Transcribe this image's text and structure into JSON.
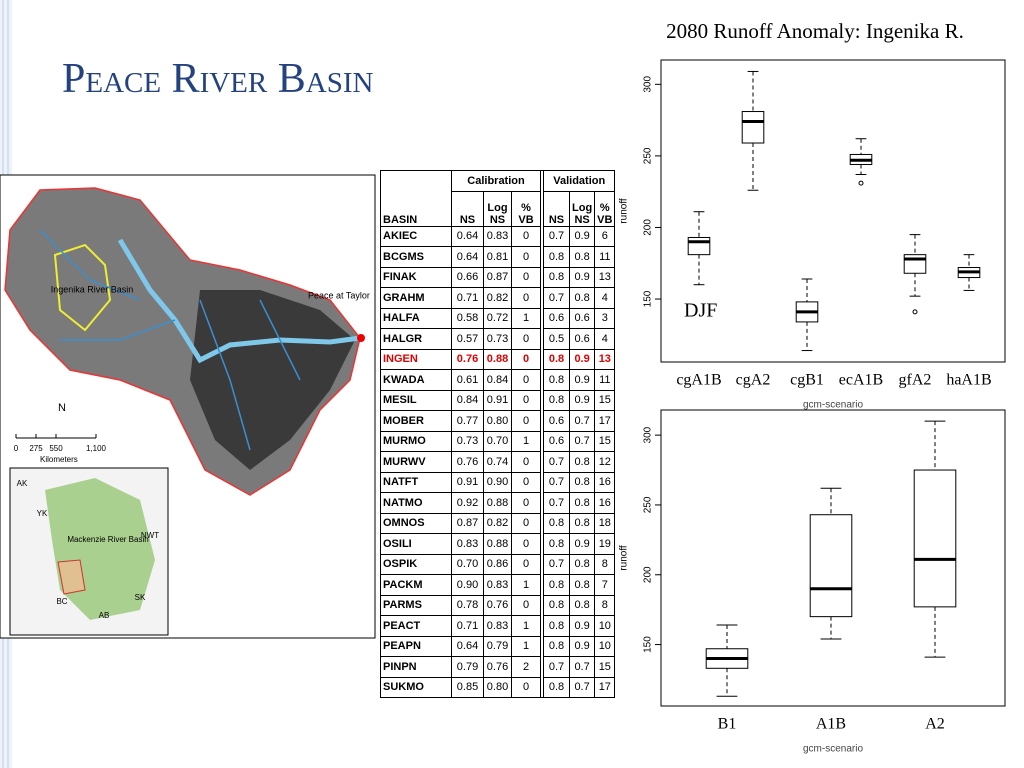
{
  "slide": {
    "title": "Peace River Basin"
  },
  "map": {
    "basin_label": "Ingenika River Basin",
    "outlet_label": "Peace at Taylor",
    "north": "N",
    "scale_ticks": [
      "0",
      "275",
      "550",
      "1,100"
    ],
    "scale_unit": "Kilometers",
    "inset_labels": [
      "AK",
      "YK",
      "NWT",
      "Mackenzie River Basin",
      "BC",
      "AB",
      "SK"
    ]
  },
  "table": {
    "group_headers": [
      "Calibration",
      "Validation"
    ],
    "columns": [
      "BASIN",
      "NS",
      "Log NS",
      "% VB",
      "NS",
      "Log NS",
      "% VB"
    ],
    "highlight_row": 6,
    "highlight_color": "#e00000",
    "rows": [
      [
        "AKIEC",
        "0.64",
        "0.83",
        "0",
        "0.7",
        "0.9",
        "6"
      ],
      [
        "BCGMS",
        "0.64",
        "0.81",
        "0",
        "0.8",
        "0.8",
        "11"
      ],
      [
        "FINAK",
        "0.66",
        "0.87",
        "0",
        "0.8",
        "0.9",
        "13"
      ],
      [
        "GRAHM",
        "0.71",
        "0.82",
        "0",
        "0.7",
        "0.8",
        "4"
      ],
      [
        "HALFA",
        "0.58",
        "0.72",
        "1",
        "0.6",
        "0.6",
        "3"
      ],
      [
        "HALGR",
        "0.57",
        "0.73",
        "0",
        "0.5",
        "0.6",
        "4"
      ],
      [
        "INGEN",
        "0.76",
        "0.88",
        "0",
        "0.8",
        "0.9",
        "13"
      ],
      [
        "KWADA",
        "0.61",
        "0.84",
        "0",
        "0.8",
        "0.9",
        "11"
      ],
      [
        "MESIL",
        "0.84",
        "0.91",
        "0",
        "0.8",
        "0.9",
        "15"
      ],
      [
        "MOBER",
        "0.77",
        "0.80",
        "0",
        "0.6",
        "0.7",
        "17"
      ],
      [
        "MURMO",
        "0.73",
        "0.70",
        "1",
        "0.6",
        "0.7",
        "15"
      ],
      [
        "MURWV",
        "0.76",
        "0.74",
        "0",
        "0.7",
        "0.8",
        "12"
      ],
      [
        "NATFT",
        "0.91",
        "0.90",
        "0",
        "0.7",
        "0.8",
        "16"
      ],
      [
        "NATMO",
        "0.92",
        "0.88",
        "0",
        "0.7",
        "0.8",
        "16"
      ],
      [
        "OMNOS",
        "0.87",
        "0.82",
        "0",
        "0.8",
        "0.8",
        "18"
      ],
      [
        "OSILI",
        "0.83",
        "0.88",
        "0",
        "0.8",
        "0.9",
        "19"
      ],
      [
        "OSPIK",
        "0.70",
        "0.86",
        "0",
        "0.7",
        "0.8",
        "8"
      ],
      [
        "PACKM",
        "0.90",
        "0.83",
        "1",
        "0.8",
        "0.8",
        "7"
      ],
      [
        "PARMS",
        "0.78",
        "0.76",
        "0",
        "0.8",
        "0.8",
        "8"
      ],
      [
        "PEACT",
        "0.71",
        "0.83",
        "1",
        "0.8",
        "0.9",
        "10"
      ],
      [
        "PEAPN",
        "0.64",
        "0.79",
        "1",
        "0.8",
        "0.9",
        "10"
      ],
      [
        "PINPN",
        "0.79",
        "0.76",
        "2",
        "0.7",
        "0.7",
        "15"
      ],
      [
        "SUKMO",
        "0.85",
        "0.80",
        "0",
        "0.8",
        "0.7",
        "17"
      ]
    ]
  },
  "chart_data": [
    {
      "type": "box",
      "title": "2080 Runoff Anomaly: Ingenika R.",
      "annotation": "DJF",
      "x_label": "gcm-scenario",
      "y_label": "runoff",
      "categories": [
        "cgA1B",
        "cgA2",
        "cgB1",
        "ecA1B",
        "gfA2",
        "haA1B"
      ],
      "values": [
        {
          "low": 160,
          "q1": 181,
          "median": 190,
          "q3": 193,
          "high": 211,
          "outliers": []
        },
        {
          "low": 226,
          "q1": 259,
          "median": 274,
          "q3": 281,
          "high": 309,
          "outliers": []
        },
        {
          "low": 114,
          "q1": 134,
          "median": 141,
          "q3": 148,
          "high": 164,
          "outliers": []
        },
        {
          "low": 237,
          "q1": 244,
          "median": 247,
          "q3": 251,
          "high": 262,
          "outliers": [
            231
          ]
        },
        {
          "low": 152,
          "q1": 168,
          "median": 178,
          "q3": 181,
          "high": 195,
          "outliers": [
            141
          ]
        },
        {
          "low": 156,
          "q1": 165,
          "median": 169,
          "q3": 172,
          "high": 181,
          "outliers": []
        }
      ],
      "ylim": [
        106,
        317
      ],
      "yticks": [
        150,
        200,
        250,
        300
      ]
    },
    {
      "type": "box",
      "x_label": "gcm-scenario",
      "y_label": "runoff",
      "categories": [
        "B1",
        "A1B",
        "A2"
      ],
      "values": [
        {
          "low": 113,
          "q1": 133,
          "median": 140,
          "q3": 147,
          "high": 164,
          "outliers": []
        },
        {
          "low": 154,
          "q1": 170,
          "median": 190,
          "q3": 243,
          "high": 262,
          "outliers": []
        },
        {
          "low": 141,
          "q1": 177,
          "median": 211,
          "q3": 275,
          "high": 310,
          "outliers": []
        }
      ],
      "ylim": [
        106,
        318
      ],
      "yticks": [
        150,
        200,
        250,
        300
      ]
    }
  ]
}
